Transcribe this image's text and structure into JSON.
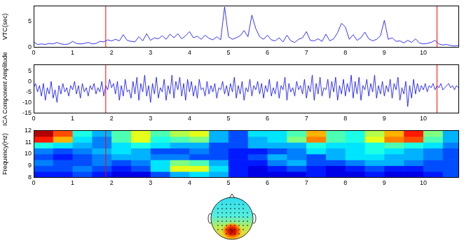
{
  "chart_data": [
    {
      "type": "line",
      "ylabel": "VTC(sec)",
      "color": "#0000ff",
      "grid": false,
      "xlim": [
        0,
        10.9
      ],
      "xticks": [
        0,
        1,
        2,
        3,
        4,
        5,
        6,
        7,
        8,
        9,
        10
      ],
      "ylim": [
        0,
        8
      ],
      "yticks": [
        0,
        5
      ],
      "vlines": [
        1.85,
        10.35
      ],
      "x": [
        0,
        0.1,
        0.2,
        0.3,
        0.4,
        0.5,
        0.6,
        0.7,
        0.8,
        0.9,
        1,
        1.1,
        1.2,
        1.3,
        1.4,
        1.5,
        1.6,
        1.7,
        1.8,
        1.9,
        2,
        2.1,
        2.2,
        2.3,
        2.4,
        2.5,
        2.6,
        2.7,
        2.8,
        2.9,
        3,
        3.1,
        3.2,
        3.3,
        3.4,
        3.5,
        3.6,
        3.7,
        3.8,
        3.9,
        4,
        4.1,
        4.2,
        4.3,
        4.4,
        4.5,
        4.6,
        4.7,
        4.8,
        4.9,
        5,
        5.1,
        5.2,
        5.3,
        5.4,
        5.5,
        5.6,
        5.7,
        5.8,
        5.9,
        6,
        6.1,
        6.2,
        6.3,
        6.4,
        6.5,
        6.6,
        6.7,
        6.8,
        6.9,
        7,
        7.1,
        7.2,
        7.3,
        7.4,
        7.5,
        7.6,
        7.7,
        7.8,
        7.9,
        8,
        8.1,
        8.2,
        8.3,
        8.4,
        8.5,
        8.6,
        8.7,
        8.8,
        8.9,
        9,
        9.1,
        9.2,
        9.3,
        9.4,
        9.5,
        9.6,
        9.7,
        9.8,
        9.9,
        10,
        10.1,
        10.2,
        10.3,
        10.4,
        10.5,
        10.6,
        10.7,
        10.8,
        10.9
      ],
      "values": [
        1.0,
        0.5,
        0.6,
        0.5,
        0.7,
        0.6,
        0.9,
        0.6,
        0.5,
        0.6,
        1.1,
        0.7,
        0.6,
        0.7,
        0.9,
        0.6,
        0.7,
        1.1,
        1.0,
        1.4,
        1.2,
        1.5,
        1.2,
        2.4,
        1.3,
        1.1,
        1.0,
        2.0,
        1.2,
        2.6,
        1.3,
        1.8,
        1.6,
        2.2,
        1.5,
        2.5,
        1.8,
        2.6,
        1.6,
        2.2,
        3.0,
        1.8,
        2.1,
        1.5,
        2.3,
        1.7,
        1.4,
        2.0,
        1.4,
        7.8,
        2.0,
        1.5,
        1.8,
        2.2,
        3.2,
        2.0,
        6.2,
        3.6,
        2.0,
        1.5,
        2.3,
        1.4,
        1.2,
        1.8,
        1.0,
        2.3,
        1.2,
        0.9,
        1.5,
        1.8,
        3.0,
        1.3,
        1.2,
        1.6,
        1.1,
        2.5,
        1.2,
        1.6,
        2.8,
        4.6,
        3.9,
        1.5,
        2.4,
        1.3,
        1.8,
        2.9,
        1.6,
        1.2,
        1.5,
        2.2,
        5.2,
        1.5,
        1.8,
        1.1,
        1.2,
        0.8,
        1.3,
        0.9,
        1.6,
        0.8,
        0.6,
        0.7,
        0.9,
        1.3,
        0.6,
        0.4,
        0.5,
        0.3,
        0.2,
        0.3
      ]
    },
    {
      "type": "line",
      "ylabel": "ICA Component Amplitude",
      "color": "#0000ff",
      "grid": false,
      "xlim": [
        0,
        10.9
      ],
      "xticks": [
        0,
        1,
        2,
        3,
        4,
        5,
        6,
        7,
        8,
        9,
        10
      ],
      "ylim": [
        -15,
        8
      ],
      "yticks": [
        -15,
        -10,
        -5,
        0,
        5
      ],
      "vlines": [
        1.85,
        10.35
      ],
      "x": [
        0,
        0.05,
        0.1,
        0.15,
        0.2,
        0.25,
        0.3,
        0.35,
        0.4,
        0.45,
        0.5,
        0.55,
        0.6,
        0.65,
        0.7,
        0.75,
        0.8,
        0.85,
        0.9,
        0.95,
        1,
        1.05,
        1.1,
        1.15,
        1.2,
        1.25,
        1.3,
        1.35,
        1.4,
        1.45,
        1.5,
        1.55,
        1.6,
        1.65,
        1.7,
        1.75,
        1.8,
        1.85,
        1.9,
        1.95,
        2,
        2.05,
        2.1,
        2.15,
        2.2,
        2.25,
        2.3,
        2.35,
        2.4,
        2.45,
        2.5,
        2.55,
        2.6,
        2.65,
        2.7,
        2.75,
        2.8,
        2.85,
        2.9,
        2.95,
        3,
        3.05,
        3.1,
        3.15,
        3.2,
        3.25,
        3.3,
        3.35,
        3.4,
        3.45,
        3.5,
        3.55,
        3.6,
        3.65,
        3.7,
        3.75,
        3.8,
        3.85,
        3.9,
        3.95,
        4,
        4.05,
        4.1,
        4.15,
        4.2,
        4.25,
        4.3,
        4.35,
        4.4,
        4.45,
        4.5,
        4.55,
        4.6,
        4.65,
        4.7,
        4.75,
        4.8,
        4.85,
        4.9,
        4.95,
        5,
        5.05,
        5.1,
        5.15,
        5.2,
        5.25,
        5.3,
        5.35,
        5.4,
        5.45,
        5.5,
        5.55,
        5.6,
        5.65,
        5.7,
        5.75,
        5.8,
        5.85,
        5.9,
        5.95,
        6,
        6.05,
        6.1,
        6.15,
        6.2,
        6.25,
        6.3,
        6.35,
        6.4,
        6.45,
        6.5,
        6.55,
        6.6,
        6.65,
        6.7,
        6.75,
        6.8,
        6.85,
        6.9,
        6.95,
        7,
        7.05,
        7.1,
        7.15,
        7.2,
        7.25,
        7.3,
        7.35,
        7.4,
        7.45,
        7.5,
        7.55,
        7.6,
        7.65,
        7.7,
        7.75,
        7.8,
        7.85,
        7.9,
        7.95,
        8,
        8.05,
        8.1,
        8.15,
        8.2,
        8.25,
        8.3,
        8.35,
        8.4,
        8.45,
        8.5,
        8.55,
        8.6,
        8.65,
        8.7,
        8.75,
        8.8,
        8.85,
        8.9,
        8.95,
        9,
        9.05,
        9.1,
        9.15,
        9.2,
        9.25,
        9.3,
        9.35,
        9.4,
        9.45,
        9.5,
        9.55,
        9.6,
        9.65,
        9.7,
        9.75,
        9.8,
        9.85,
        9.9,
        9.95,
        10,
        10.05,
        10.1,
        10.15,
        10.2,
        10.25,
        10.3,
        10.35,
        10.4,
        10.45,
        10.5,
        10.55,
        10.6,
        10.65,
        10.7,
        10.75,
        10.8,
        10.85,
        10.9
      ],
      "values": [
        -3,
        -1,
        -5,
        -2,
        -7,
        -1,
        -9,
        -3,
        -6,
        0,
        -8,
        -4,
        -10,
        -2,
        -6,
        -1,
        -5,
        -3,
        -7,
        -2,
        -4,
        0,
        -6,
        -2,
        -8,
        -1,
        -5,
        -3,
        -7,
        -2,
        -4,
        -1,
        -6,
        -3,
        -5,
        0,
        -7,
        -2,
        -4,
        1,
        -3,
        -1,
        -6,
        0,
        -9,
        -2,
        -7,
        1,
        -5,
        -4,
        -8,
        0,
        -6,
        2,
        -9,
        -1,
        -5,
        3,
        -7,
        -2,
        -10,
        -1,
        -6,
        2,
        -8,
        -3,
        -5,
        1,
        -9,
        -2,
        -6,
        3,
        -8,
        0,
        -4,
        2,
        -7,
        -1,
        -9,
        1,
        -5,
        0,
        -7,
        -2,
        -8,
        1,
        -4,
        -3,
        -7,
        0,
        -6,
        -2,
        -5,
        -1,
        -8,
        -3,
        -4,
        0,
        -6,
        -2,
        -7,
        -1,
        -5,
        2,
        -8,
        -2,
        -6,
        0,
        -9,
        -3,
        -5,
        1,
        -7,
        -2,
        -4,
        0,
        -6,
        -1,
        -8,
        -2,
        -5,
        1,
        -7,
        -3,
        -6,
        0,
        -8,
        -2,
        -4,
        2,
        -9,
        -1,
        -5,
        -3,
        -7,
        0,
        -4,
        -2,
        -6,
        1,
        -8,
        -2,
        -5,
        3,
        -9,
        -1,
        -6,
        2,
        -7,
        -3,
        -4,
        1,
        -8,
        0,
        -5,
        2,
        -9,
        -2,
        -6,
        1,
        -7,
        -1,
        -5,
        3,
        -8,
        0,
        -6,
        2,
        -9,
        -2,
        -4,
        1,
        -7,
        -1,
        -5,
        3,
        -8,
        -2,
        -6,
        0,
        -7,
        -2,
        -5,
        1,
        -8,
        -1,
        -4,
        2,
        -9,
        -3,
        -6,
        0,
        -12,
        -2,
        -8,
        1,
        -6,
        -1,
        -5,
        -2,
        -4,
        -1,
        -5,
        -2,
        -3,
        -1,
        -4,
        -2,
        -3,
        -1,
        -4,
        -3,
        -2,
        -1,
        -3,
        -2,
        -4,
        -2,
        -3
      ]
    },
    {
      "type": "heatmap",
      "ylabel": "Frequency(Hz)",
      "grid": false,
      "xlim": [
        0,
        10.9
      ],
      "xticks": [
        0,
        1,
        2,
        3,
        4,
        5,
        6,
        7,
        8,
        9,
        10
      ],
      "ylim": [
        8,
        12
      ],
      "yticks": [
        8,
        9,
        10,
        11,
        12
      ],
      "vlines": [
        1.85
      ],
      "zlim": [
        0,
        1
      ],
      "x_edges": [
        0,
        0.5,
        1,
        1.5,
        2,
        2.5,
        3,
        3.5,
        4,
        4.5,
        5,
        5.5,
        6,
        6.5,
        7,
        7.5,
        8,
        8.5,
        9,
        9.5,
        10,
        10.5,
        11
      ],
      "y_edges": [
        8,
        8.5,
        9,
        9.5,
        10,
        10.5,
        11,
        11.5,
        12
      ],
      "cells": [
        [
          0.15,
          0.15,
          0.2,
          0.15,
          0.1,
          0.1,
          0.2,
          0.3,
          0.35,
          0.3,
          0.15,
          0.1,
          0.1,
          0.1,
          0.15,
          0.1,
          0.1,
          0.15,
          0.1,
          0.1,
          0.15,
          0.2
        ],
        [
          0.2,
          0.2,
          0.25,
          0.2,
          0.15,
          0.2,
          0.35,
          0.6,
          0.6,
          0.35,
          0.15,
          0.1,
          0.15,
          0.2,
          0.15,
          0.1,
          0.15,
          0.2,
          0.15,
          0.15,
          0.2,
          0.2
        ],
        [
          0.25,
          0.2,
          0.2,
          0.25,
          0.2,
          0.25,
          0.35,
          0.5,
          0.45,
          0.3,
          0.15,
          0.15,
          0.25,
          0.3,
          0.2,
          0.2,
          0.25,
          0.3,
          0.3,
          0.25,
          0.2,
          0.2
        ],
        [
          0.2,
          0.15,
          0.2,
          0.25,
          0.3,
          0.3,
          0.25,
          0.25,
          0.2,
          0.2,
          0.15,
          0.2,
          0.3,
          0.25,
          0.2,
          0.3,
          0.35,
          0.35,
          0.3,
          0.3,
          0.25,
          0.2
        ],
        [
          0.25,
          0.2,
          0.25,
          0.3,
          0.35,
          0.3,
          0.2,
          0.2,
          0.25,
          0.2,
          0.15,
          0.15,
          0.2,
          0.25,
          0.35,
          0.3,
          0.35,
          0.4,
          0.35,
          0.3,
          0.25,
          0.2
        ],
        [
          0.4,
          0.35,
          0.3,
          0.25,
          0.35,
          0.4,
          0.35,
          0.3,
          0.3,
          0.2,
          0.2,
          0.3,
          0.3,
          0.3,
          0.4,
          0.35,
          0.35,
          0.4,
          0.45,
          0.4,
          0.35,
          0.25
        ],
        [
          0.85,
          0.7,
          0.35,
          0.25,
          0.45,
          0.6,
          0.4,
          0.45,
          0.5,
          0.3,
          0.2,
          0.3,
          0.35,
          0.5,
          0.75,
          0.45,
          0.4,
          0.6,
          0.75,
          0.8,
          0.45,
          0.3
        ],
        [
          0.95,
          0.8,
          0.4,
          0.3,
          0.45,
          0.6,
          0.45,
          0.55,
          0.6,
          0.3,
          0.2,
          0.35,
          0.35,
          0.45,
          0.7,
          0.45,
          0.4,
          0.55,
          0.7,
          0.85,
          0.5,
          0.3
        ]
      ]
    }
  ]
}
